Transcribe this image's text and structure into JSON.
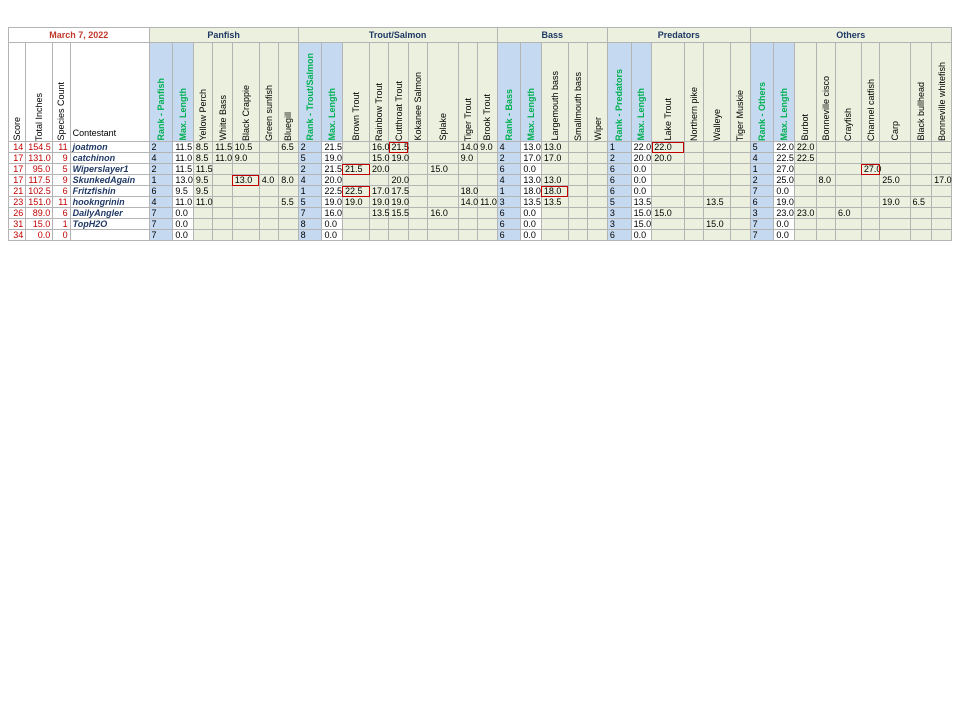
{
  "date": "March 7, 2022",
  "groups": [
    "Panfish",
    "Trout/Salmon",
    "Bass",
    "Predators",
    "Others"
  ],
  "header": {
    "score": "Score",
    "total_inches": "Total Inches",
    "species_count": "Species Count",
    "contestant": "Contestant",
    "panfish": [
      "Rank - Panfish",
      "Max. Length",
      "Yellow Perch",
      "White Bass",
      "Black Crappie",
      "Green sunfish",
      "Bluegill"
    ],
    "trout": [
      "Rank - Trout/Salmon",
      "Max. Length",
      "Brown Trout",
      "Rainbow Trout",
      "Cutthroat Trout",
      "Kokanee Salmon",
      "Splake",
      "Tiger Trout",
      "Brook Trout"
    ],
    "bass": [
      "Rank - Bass",
      "Max. Length",
      "Largemouth bass",
      "Smallmouth bass",
      "Wiper"
    ],
    "predators": [
      "Rank - Predators",
      "Max. Length",
      "Lake Trout",
      "Northern pike",
      "Walleye",
      "Tiger Muskie"
    ],
    "others": [
      "Rank - Others",
      "Max. Length",
      "Burbot",
      "Bonneville cisco",
      "Crayfish",
      "Channel catfish",
      "Carp",
      "Black bullhead",
      "Bonneville whitefish"
    ]
  },
  "rows": [
    {
      "score": "14",
      "total": "154.5",
      "count": "11",
      "name": "joatmon",
      "panfish": [
        "2",
        "11.5",
        "8.5",
        "11.5",
        "10.5",
        "",
        "6.5"
      ],
      "trout": [
        "2",
        "21.5",
        "",
        "16.0",
        "21.5",
        "",
        "",
        "14.0",
        "9.0"
      ],
      "bass": [
        "4",
        "13.0",
        "13.0",
        "",
        ""
      ],
      "predators": [
        "1",
        "22.0",
        "22.0",
        "",
        "",
        ""
      ],
      "others": [
        "5",
        "22.0",
        "22.0",
        "",
        "",
        "",
        "",
        "",
        ""
      ]
    },
    {
      "score": "17",
      "total": "131.0",
      "count": "9",
      "name": "catchinon",
      "panfish": [
        "4",
        "11.0",
        "8.5",
        "11.0",
        "9.0",
        "",
        ""
      ],
      "trout": [
        "5",
        "19.0",
        "",
        "15.0",
        "19.0",
        "",
        "",
        "9.0",
        ""
      ],
      "bass": [
        "2",
        "17.0",
        "17.0",
        "",
        ""
      ],
      "predators": [
        "2",
        "20.0",
        "20.0",
        "",
        "",
        ""
      ],
      "others": [
        "4",
        "22.5",
        "22.5",
        "",
        "",
        "",
        "",
        "",
        ""
      ]
    },
    {
      "score": "17",
      "total": "95.0",
      "count": "5",
      "name": "Wiperslayer1",
      "panfish": [
        "2",
        "11.5",
        "11.5",
        "",
        "",
        "",
        ""
      ],
      "trout": [
        "2",
        "21.5",
        "21.5",
        "20.0",
        "",
        "",
        "15.0",
        "",
        ""
      ],
      "bass": [
        "6",
        "0.0",
        "",
        "",
        ""
      ],
      "predators": [
        "6",
        "0.0",
        "",
        "",
        "",
        ""
      ],
      "others": [
        "1",
        "27.0",
        "",
        "",
        "",
        "27.0",
        "",
        "",
        ""
      ]
    },
    {
      "score": "17",
      "total": "117.5",
      "count": "9",
      "name": "SkunkedAgain",
      "panfish": [
        "1",
        "13.0",
        "9.5",
        "",
        "13.0",
        "4.0",
        "8.0"
      ],
      "trout": [
        "4",
        "20.0",
        "",
        "",
        "20.0",
        "",
        "",
        "",
        ""
      ],
      "bass": [
        "4",
        "13.0",
        "13.0",
        "",
        ""
      ],
      "predators": [
        "6",
        "0.0",
        "",
        "",
        "",
        ""
      ],
      "others": [
        "2",
        "25.0",
        "",
        "8.0",
        "",
        "",
        "25.0",
        "",
        "17.0"
      ]
    },
    {
      "score": "21",
      "total": "102.5",
      "count": "6",
      "name": "Fritzfishin",
      "panfish": [
        "6",
        "9.5",
        "9.5",
        "",
        "",
        "",
        ""
      ],
      "trout": [
        "1",
        "22.5",
        "22.5",
        "17.0",
        "17.5",
        "",
        "",
        "18.0",
        ""
      ],
      "bass": [
        "1",
        "18.0",
        "18.0",
        "",
        ""
      ],
      "predators": [
        "6",
        "0.0",
        "",
        "",
        "",
        ""
      ],
      "others": [
        "7",
        "0.0",
        "",
        "",
        "",
        "",
        "",
        "",
        ""
      ]
    },
    {
      "score": "23",
      "total": "151.0",
      "count": "11",
      "name": "hookngrinin",
      "panfish": [
        "4",
        "11.0",
        "11.0",
        "",
        "",
        "",
        "5.5"
      ],
      "trout": [
        "5",
        "19.0",
        "19.0",
        "19.0",
        "19.0",
        "",
        "",
        "14.0",
        "11.0"
      ],
      "bass": [
        "3",
        "13.5",
        "13.5",
        "",
        ""
      ],
      "predators": [
        "5",
        "13.5",
        "",
        "",
        "13.5",
        ""
      ],
      "others": [
        "6",
        "19.0",
        "",
        "",
        "",
        "",
        "19.0",
        "6.5",
        ""
      ]
    },
    {
      "score": "26",
      "total": "89.0",
      "count": "6",
      "name": "DailyAngler",
      "panfish": [
        "7",
        "0.0",
        "",
        "",
        "",
        "",
        ""
      ],
      "trout": [
        "7",
        "16.0",
        "",
        "13.5",
        "15.5",
        "",
        "16.0",
        "",
        ""
      ],
      "bass": [
        "6",
        "0.0",
        "",
        "",
        ""
      ],
      "predators": [
        "3",
        "15.0",
        "15.0",
        "",
        "",
        ""
      ],
      "others": [
        "3",
        "23.0",
        "23.0",
        "",
        "6.0",
        "",
        "",
        "",
        ""
      ]
    },
    {
      "score": "31",
      "total": "15.0",
      "count": "1",
      "name": "TopH2O",
      "panfish": [
        "7",
        "0.0",
        "",
        "",
        "",
        "",
        ""
      ],
      "trout": [
        "8",
        "0.0",
        "",
        "",
        "",
        "",
        "",
        "",
        ""
      ],
      "bass": [
        "6",
        "0.0",
        "",
        "",
        ""
      ],
      "predators": [
        "3",
        "15.0",
        "",
        "",
        "15.0",
        ""
      ],
      "others": [
        "7",
        "0.0",
        "",
        "",
        "",
        "",
        "",
        "",
        ""
      ]
    },
    {
      "score": "34",
      "total": "0.0",
      "count": "0",
      "name": "",
      "panfish": [
        "7",
        "0.0",
        "",
        "",
        "",
        "",
        ""
      ],
      "trout": [
        "8",
        "0.0",
        "",
        "",
        "",
        "",
        "",
        "",
        ""
      ],
      "bass": [
        "6",
        "0.0",
        "",
        "",
        ""
      ],
      "predators": [
        "6",
        "0.0",
        "",
        "",
        "",
        ""
      ],
      "others": [
        "7",
        "0.0",
        "",
        "",
        "",
        "",
        "",
        "",
        ""
      ]
    }
  ],
  "highlights": [
    {
      "row": 0,
      "group": "trout",
      "col": 4
    },
    {
      "row": 0,
      "group": "predators",
      "col": 2
    },
    {
      "row": 2,
      "group": "trout",
      "col": 2
    },
    {
      "row": 2,
      "group": "others",
      "col": 5
    },
    {
      "row": 3,
      "group": "panfish",
      "col": 4
    },
    {
      "row": 4,
      "group": "trout",
      "col": 2
    },
    {
      "row": 4,
      "group": "bass",
      "col": 2
    }
  ],
  "colors": {
    "score_red": "#c00000",
    "name_blue": "#1f3864",
    "rank_green": "#00b050",
    "group_bg": "#ebf1de",
    "rank_bg": "#c5d9f1"
  }
}
